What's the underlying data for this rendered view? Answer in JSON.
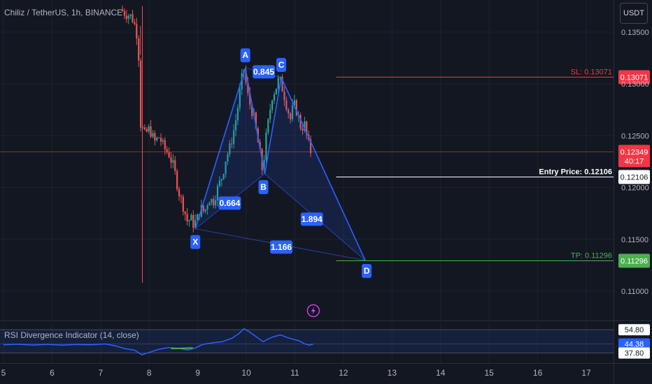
{
  "header": {
    "symbol_title": "Chiliz / TetherUS, 1h, BINANCE",
    "currency_button": "USDT"
  },
  "colors": {
    "background": "#131722",
    "grid": "#1e222d",
    "candle_up": "#26a69a",
    "candle_down": "#ef5350",
    "pattern_line": "#2962ff",
    "pattern_fill": "rgba(41,98,255,0.14)",
    "sl_line": "#f23645",
    "tp_line": "#4caf50",
    "entry_line": "#ffffff",
    "current_price": "#f23645",
    "rsi_line": "#2962ff",
    "rsi_band": "rgba(41,98,255,0.12)"
  },
  "chart_data": {
    "type": "candlestick",
    "x_axis": {
      "ticks": [
        "5",
        "6",
        "7",
        "8",
        "9",
        "10",
        "11",
        "12",
        "13",
        "14",
        "15",
        "16",
        "17"
      ],
      "xlim": [
        5,
        17.4
      ]
    },
    "y_axis": {
      "ticks": [
        "0.11000",
        "0.11500",
        "0.12000",
        "0.12500",
        "0.13000",
        "0.13500"
      ],
      "ylim": [
        0.1063,
        0.1372
      ]
    },
    "price_path": [
      [
        7.45,
        0.1372
      ],
      [
        7.55,
        0.1368
      ],
      [
        7.65,
        0.1366
      ],
      [
        7.72,
        0.1361
      ],
      [
        7.78,
        0.135
      ],
      [
        7.82,
        0.1336
      ],
      [
        7.86,
        0.1262
      ],
      [
        7.95,
        0.1251
      ],
      [
        8.05,
        0.1257
      ],
      [
        8.15,
        0.1244
      ],
      [
        8.25,
        0.1249
      ],
      [
        8.35,
        0.1238
      ],
      [
        8.45,
        0.1232
      ],
      [
        8.55,
        0.1219
      ],
      [
        8.65,
        0.1196
      ],
      [
        8.75,
        0.1181
      ],
      [
        8.83,
        0.1167
      ],
      [
        8.9,
        0.117
      ],
      [
        8.96,
        0.1164
      ],
      [
        9.03,
        0.117
      ],
      [
        9.1,
        0.118
      ],
      [
        9.18,
        0.1176
      ],
      [
        9.27,
        0.119
      ],
      [
        9.36,
        0.1186
      ],
      [
        9.45,
        0.1199
      ],
      [
        9.55,
        0.1212
      ],
      [
        9.62,
        0.1228
      ],
      [
        9.7,
        0.1238
      ],
      [
        9.77,
        0.1252
      ],
      [
        9.84,
        0.1269
      ],
      [
        9.9,
        0.1289
      ],
      [
        9.95,
        0.1305
      ],
      [
        10.0,
        0.1316
      ],
      [
        10.05,
        0.1293
      ],
      [
        10.12,
        0.128
      ],
      [
        10.2,
        0.1267
      ],
      [
        10.27,
        0.1247
      ],
      [
        10.34,
        0.1228
      ],
      [
        10.38,
        0.1213
      ],
      [
        10.43,
        0.1242
      ],
      [
        10.5,
        0.1265
      ],
      [
        10.57,
        0.1288
      ],
      [
        10.65,
        0.1296
      ],
      [
        10.72,
        0.1306
      ],
      [
        10.8,
        0.1293
      ],
      [
        10.88,
        0.1278
      ],
      [
        10.95,
        0.1266
      ],
      [
        11.02,
        0.1281
      ],
      [
        11.1,
        0.1271
      ],
      [
        11.17,
        0.1257
      ],
      [
        11.24,
        0.1261
      ],
      [
        11.3,
        0.1246
      ],
      [
        11.36,
        0.1235
      ]
    ],
    "harmonic_pattern": {
      "points": [
        {
          "label": "X",
          "x": 8.95,
          "y": 0.11602
        },
        {
          "label": "A",
          "x": 9.98,
          "y": 0.13155
        },
        {
          "label": "B",
          "x": 10.38,
          "y": 0.12132
        },
        {
          "label": "C",
          "x": 10.72,
          "y": 0.13062
        },
        {
          "label": "D",
          "x": 12.45,
          "y": 0.11296
        }
      ],
      "ratios": [
        {
          "value": "0.664",
          "between": "X-B",
          "x": 9.66,
          "y": 0.1185
        },
        {
          "value": "0.845",
          "between": "A-C",
          "x": 10.36,
          "y": 0.13117
        },
        {
          "value": "1.894",
          "between": "B-D",
          "x": 11.35,
          "y": 0.11695
        },
        {
          "value": "1.166",
          "between": "X-D",
          "x": 10.72,
          "y": 0.11425
        }
      ]
    },
    "levels": [
      {
        "name": "SL",
        "label": "SL: 0.13071",
        "value": 0.13071,
        "axis_label": "0.13071",
        "x_start": 11.85
      },
      {
        "name": "Entry",
        "label": "Entry Price: 0.12106",
        "value": 0.12106,
        "axis_label": "0.12106",
        "x_start": 11.85
      },
      {
        "name": "TP",
        "label": "TP: 0.11296",
        "value": 0.11296,
        "axis_label": "0.11296",
        "x_start": 11.85
      }
    ],
    "current_price": {
      "value": 0.12349,
      "label": "0.12349",
      "countdown": "40:17"
    },
    "rsi": {
      "legend": "RSI Divergence Indicator (14, close)",
      "ticks": [
        "54.80",
        "44.38",
        "37.80"
      ],
      "ylim": [
        33,
        60
      ],
      "band": [
        37.8,
        54.8
      ],
      "current": 44.38,
      "values": [
        [
          5.0,
          43.8
        ],
        [
          5.3,
          44.2
        ],
        [
          5.6,
          43.6
        ],
        [
          5.9,
          44.1
        ],
        [
          6.2,
          43.5
        ],
        [
          6.5,
          44.0
        ],
        [
          6.8,
          43.8
        ],
        [
          7.1,
          44.4
        ],
        [
          7.3,
          43.0
        ],
        [
          7.5,
          41.0
        ],
        [
          7.7,
          39.8
        ],
        [
          7.85,
          36.5
        ],
        [
          8.0,
          38.2
        ],
        [
          8.2,
          40.5
        ],
        [
          8.4,
          41.8
        ],
        [
          8.6,
          41.2
        ],
        [
          8.8,
          40.0
        ],
        [
          8.95,
          41.5
        ],
        [
          9.1,
          44.0
        ],
        [
          9.3,
          45.2
        ],
        [
          9.5,
          46.0
        ],
        [
          9.7,
          48.5
        ],
        [
          9.85,
          52.0
        ],
        [
          9.95,
          55.5
        ],
        [
          10.05,
          53.5
        ],
        [
          10.15,
          51.0
        ],
        [
          10.25,
          48.5
        ],
        [
          10.35,
          46.0
        ],
        [
          10.42,
          47.5
        ],
        [
          10.55,
          49.5
        ],
        [
          10.7,
          51.0
        ],
        [
          10.85,
          49.0
        ],
        [
          11.0,
          47.5
        ],
        [
          11.1,
          46.5
        ],
        [
          11.2,
          44.5
        ],
        [
          11.3,
          43.5
        ],
        [
          11.38,
          44.38
        ]
      ],
      "divergence_segment": [
        [
          8.45,
          41.0
        ],
        [
          8.9,
          41.5
        ]
      ]
    }
  }
}
